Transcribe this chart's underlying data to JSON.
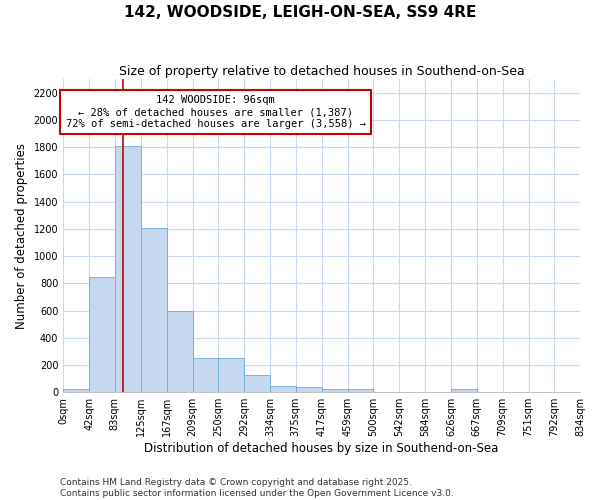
{
  "title": "142, WOODSIDE, LEIGH-ON-SEA, SS9 4RE",
  "subtitle": "Size of property relative to detached houses in Southend-on-Sea",
  "xlabel": "Distribution of detached houses by size in Southend-on-Sea",
  "ylabel": "Number of detached properties",
  "footer_line1": "Contains HM Land Registry data © Crown copyright and database right 2025.",
  "footer_line2": "Contains public sector information licensed under the Open Government Licence v3.0.",
  "annotation_title": "142 WOODSIDE: 96sqm",
  "annotation_line1": "← 28% of detached houses are smaller (1,387)",
  "annotation_line2": "72% of semi-detached houses are larger (3,558) →",
  "bar_edges": [
    0,
    42,
    83,
    125,
    167,
    209,
    250,
    292,
    334,
    375,
    417,
    459,
    500,
    542,
    584,
    626,
    667,
    709,
    751,
    792,
    834
  ],
  "bar_heights": [
    25,
    845,
    1810,
    1210,
    600,
    255,
    255,
    125,
    48,
    40,
    25,
    20,
    0,
    0,
    0,
    20,
    0,
    0,
    0,
    0
  ],
  "bar_color": "#c5d8f0",
  "bar_edge_color": "#6baed6",
  "red_line_x": 96,
  "ylim": [
    0,
    2300
  ],
  "yticks": [
    0,
    200,
    400,
    600,
    800,
    1000,
    1200,
    1400,
    1600,
    1800,
    2000,
    2200
  ],
  "tick_labels": [
    "0sqm",
    "42sqm",
    "83sqm",
    "125sqm",
    "167sqm",
    "209sqm",
    "250sqm",
    "292sqm",
    "334sqm",
    "375sqm",
    "417sqm",
    "459sqm",
    "500sqm",
    "542sqm",
    "584sqm",
    "626sqm",
    "667sqm",
    "709sqm",
    "751sqm",
    "792sqm",
    "834sqm"
  ],
  "background_color": "#ffffff",
  "grid_color": "#c8d8ee",
  "annotation_box_color": "#ffffff",
  "annotation_box_edge": "#cc0000",
  "red_line_color": "#cc0000",
  "title_fontsize": 11,
  "subtitle_fontsize": 9,
  "xlabel_fontsize": 8.5,
  "ylabel_fontsize": 8.5,
  "tick_fontsize": 7,
  "annotation_fontsize": 7.5,
  "footer_fontsize": 6.5
}
